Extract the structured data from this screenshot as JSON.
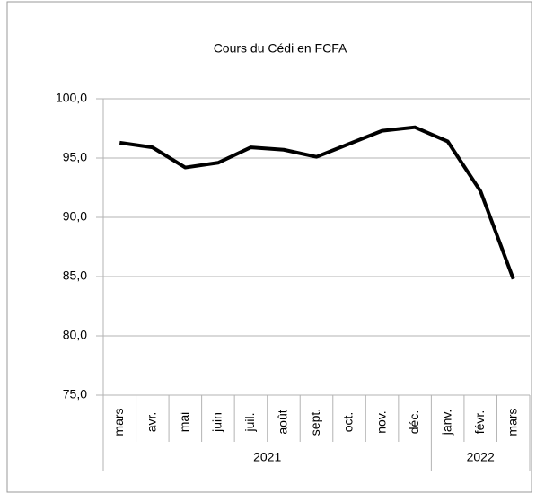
{
  "chart_data": {
    "type": "line",
    "title": "Cours du Cédi en FCFA",
    "category_groups": [
      {
        "label": "2021",
        "categories": [
          "mars",
          "avr.",
          "mai",
          "juin",
          "juil.",
          "août",
          "sept.",
          "oct.",
          "nov.",
          "déc."
        ]
      },
      {
        "label": "2022",
        "categories": [
          "janv.",
          "févr.",
          "mars"
        ]
      }
    ],
    "series": [
      {
        "color": "#000000",
        "values": [
          96.3,
          95.9,
          94.2,
          94.6,
          95.9,
          95.7,
          95.1,
          96.2,
          97.3,
          97.6,
          96.4,
          92.2,
          84.8
        ]
      }
    ],
    "ylim": [
      75,
      100
    ],
    "yticks": [
      {
        "value": 75,
        "label": "75,0"
      },
      {
        "value": 80,
        "label": "80,0"
      },
      {
        "value": 85,
        "label": "85,0"
      },
      {
        "value": 90,
        "label": "90,0"
      },
      {
        "value": 95,
        "label": "95,0"
      },
      {
        "value": 100,
        "label": "100,0"
      }
    ],
    "grid": true
  }
}
